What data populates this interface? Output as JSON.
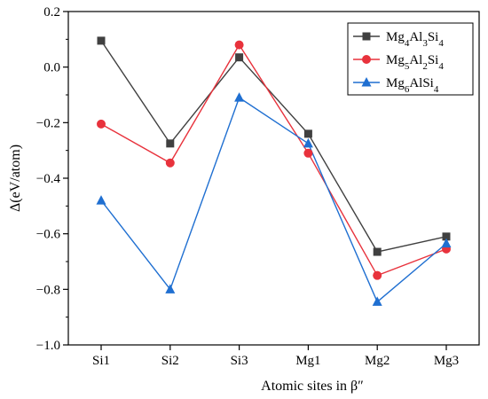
{
  "chart_data": {
    "type": "line",
    "categories": [
      "Si1",
      "Si2",
      "Si3",
      "Mg1",
      "Mg2",
      "Mg3"
    ],
    "xlabel": "Atomic sites in β″",
    "ylabel": "Δ(eV/atom)",
    "ylim": [
      -1.0,
      0.2
    ],
    "yticks": [
      0.2,
      0.0,
      -0.2,
      -0.4,
      -0.6,
      -0.8,
      -1.0
    ],
    "ytick_labels": [
      "0.2",
      "0.0",
      "−0.2",
      "−0.4",
      "−0.6",
      "−0.8",
      "−1.0"
    ],
    "grid": false,
    "legend_position": "top-right",
    "series": [
      {
        "name": "Mg4Al3Si4",
        "label_parts": [
          [
            "Mg",
            ""
          ],
          [
            "4",
            "sub"
          ],
          [
            "Al",
            ""
          ],
          [
            "3",
            "sub"
          ],
          [
            "Si",
            ""
          ],
          [
            "4",
            "sub"
          ]
        ],
        "color": "#404040",
        "marker": "square",
        "values": [
          0.095,
          -0.275,
          0.035,
          -0.24,
          -0.665,
          -0.61
        ]
      },
      {
        "name": "Mg5Al2Si4",
        "label_parts": [
          [
            "Mg",
            ""
          ],
          [
            "5",
            "sub"
          ],
          [
            "Al",
            ""
          ],
          [
            "2",
            "sub"
          ],
          [
            "Si",
            ""
          ],
          [
            "4",
            "sub"
          ]
        ],
        "color": "#e8323c",
        "marker": "circle",
        "values": [
          -0.205,
          -0.345,
          0.08,
          -0.31,
          -0.75,
          -0.655
        ]
      },
      {
        "name": "Mg6AlSi4",
        "label_parts": [
          [
            "Mg",
            ""
          ],
          [
            "6",
            "sub"
          ],
          [
            "AlSi",
            ""
          ],
          [
            "4",
            "sub"
          ]
        ],
        "color": "#1f6fd1",
        "marker": "triangle",
        "values": [
          -0.48,
          -0.8,
          -0.11,
          -0.275,
          -0.845,
          -0.635
        ]
      }
    ]
  }
}
